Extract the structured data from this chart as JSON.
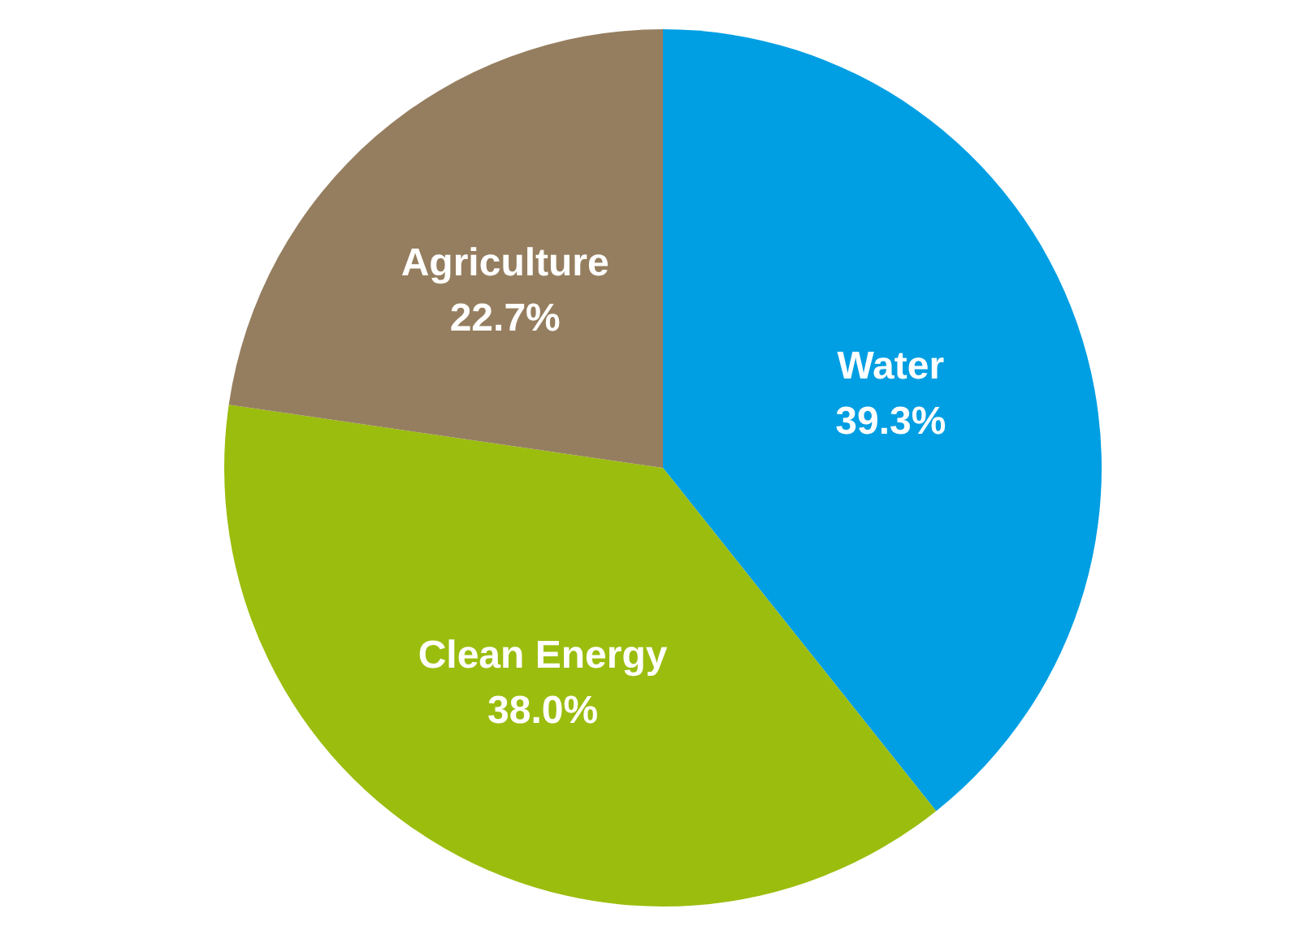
{
  "chart_data": {
    "type": "pie",
    "categories": [
      "Water",
      "Clean Energy",
      "Agriculture"
    ],
    "values": [
      39.3,
      38.0,
      22.7
    ],
    "colors": [
      "#009fe3",
      "#9bbd0e",
      "#957e5f"
    ],
    "value_labels": [
      "39.3%",
      "38.0%",
      "22.7%"
    ]
  }
}
